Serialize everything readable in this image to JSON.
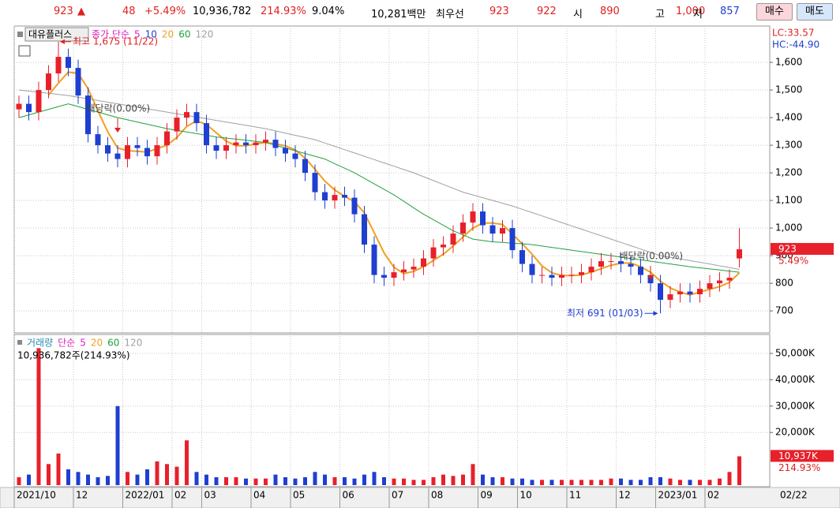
{
  "header": {
    "price": "923",
    "arrow": "▲",
    "change": "48",
    "rate": "+5.49%",
    "volume": "10,936,782",
    "volume_ratio": "214.93%",
    "turnover": "9.04%",
    "amount": "10,281백만",
    "best_label": "최우선",
    "ask": "923",
    "bid": "922",
    "open_label": "시",
    "open": "890",
    "high_label": "고",
    "high": "1,000",
    "low_label": "저",
    "low": "857",
    "buy": "매수",
    "sell": "매도"
  },
  "chart_data": [
    {
      "type": "candlestick",
      "name": "대유플러스",
      "categories": [
        "2021/10",
        null,
        null,
        null,
        null,
        null,
        "12",
        null,
        null,
        null,
        null,
        "2022/01",
        null,
        null,
        null,
        null,
        "02",
        null,
        null,
        "03",
        null,
        null,
        null,
        null,
        "04",
        null,
        null,
        null,
        "05",
        null,
        null,
        null,
        null,
        "06",
        null,
        null,
        null,
        null,
        "07",
        null,
        null,
        null,
        "08",
        null,
        null,
        null,
        null,
        "09",
        null,
        null,
        null,
        "10",
        null,
        null,
        null,
        null,
        "11",
        null,
        null,
        null,
        null,
        "12",
        null,
        null,
        null,
        "2023/01",
        null,
        null,
        null,
        null,
        "02",
        null,
        null,
        null
      ],
      "last_date": "02/22",
      "open": [
        1430,
        1450,
        1420,
        1500,
        1560,
        1620,
        1580,
        1480,
        1340,
        1300,
        1270,
        1250,
        1300,
        1290,
        1260,
        1300,
        1350,
        1400,
        1420,
        1380,
        1300,
        1280,
        1300,
        1310,
        1300,
        1310,
        1320,
        1290,
        1270,
        1250,
        1200,
        1130,
        1100,
        1120,
        1110,
        1050,
        940,
        830,
        820,
        840,
        850,
        860,
        890,
        930,
        940,
        980,
        1020,
        1060,
        1010,
        980,
        1000,
        920,
        870,
        830,
        830,
        820,
        830,
        830,
        840,
        860,
        880,
        880,
        870,
        860,
        830,
        800,
        740,
        760,
        770,
        760,
        780,
        800,
        810,
        890
      ],
      "high": [
        1480,
        1480,
        1530,
        1590,
        1675,
        1650,
        1610,
        1510,
        1370,
        1330,
        1300,
        1330,
        1330,
        1320,
        1330,
        1380,
        1430,
        1450,
        1450,
        1410,
        1330,
        1330,
        1340,
        1340,
        1340,
        1350,
        1350,
        1320,
        1300,
        1280,
        1230,
        1160,
        1150,
        1150,
        1140,
        1080,
        970,
        860,
        870,
        880,
        890,
        920,
        960,
        970,
        1010,
        1050,
        1090,
        1090,
        1040,
        1030,
        1030,
        950,
        900,
        860,
        860,
        860,
        860,
        870,
        890,
        910,
        910,
        910,
        900,
        890,
        860,
        830,
        790,
        800,
        800,
        810,
        830,
        840,
        850,
        1000
      ],
      "low": [
        1400,
        1390,
        1390,
        1470,
        1530,
        1550,
        1450,
        1310,
        1270,
        1240,
        1220,
        1220,
        1260,
        1230,
        1230,
        1270,
        1320,
        1370,
        1350,
        1270,
        1250,
        1250,
        1270,
        1270,
        1270,
        1280,
        1260,
        1240,
        1220,
        1170,
        1100,
        1070,
        1070,
        1080,
        1020,
        910,
        800,
        790,
        790,
        810,
        820,
        830,
        860,
        900,
        910,
        950,
        990,
        980,
        950,
        950,
        890,
        840,
        800,
        800,
        790,
        790,
        800,
        800,
        810,
        830,
        850,
        840,
        830,
        800,
        770,
        691,
        710,
        730,
        730,
        730,
        750,
        770,
        780,
        857
      ],
      "close": [
        1450,
        1420,
        1500,
        1560,
        1620,
        1580,
        1480,
        1340,
        1300,
        1270,
        1250,
        1300,
        1290,
        1260,
        1300,
        1350,
        1400,
        1420,
        1380,
        1300,
        1280,
        1300,
        1310,
        1300,
        1310,
        1320,
        1290,
        1270,
        1250,
        1200,
        1130,
        1100,
        1120,
        1110,
        1050,
        940,
        830,
        820,
        840,
        850,
        860,
        890,
        930,
        940,
        980,
        1020,
        1060,
        1010,
        980,
        1000,
        920,
        870,
        830,
        830,
        820,
        830,
        830,
        840,
        860,
        880,
        880,
        870,
        860,
        830,
        800,
        740,
        760,
        770,
        760,
        780,
        800,
        810,
        820,
        923
      ],
      "up_color": "#e8202a",
      "down_color": "#1f3fd0",
      "ma_label": "종가 단순",
      "ma_series": [
        {
          "name": "5",
          "color": "#e020c0"
        },
        {
          "name": "10",
          "color": "#2040e0"
        },
        {
          "name": "20",
          "color": "#f0a020",
          "values": [
            null,
            null,
            null,
            1482,
            1525,
            1565,
            1560,
            1505,
            1425,
            1348,
            1290,
            1280,
            1278,
            1275,
            1288,
            1300,
            1328,
            1368,
            1388,
            1375,
            1345,
            1315,
            1298,
            1298,
            1305,
            1310,
            1305,
            1298,
            1283,
            1253,
            1213,
            1170,
            1138,
            1115,
            1095,
            1055,
            983,
            910,
            858,
            835,
            843,
            860,
            883,
            905,
            935,
            968,
            1000,
            1018,
            1018,
            1013,
            978,
            943,
            905,
            863,
            838,
            828,
            828,
            830,
            840,
            853,
            865,
            873,
            873,
            860,
            840,
            808,
            783,
            768,
            758,
            768,
            778,
            788,
            803,
            838
          ]
        },
        {
          "name": "60",
          "color": "#20a040",
          "values": [
            1400,
            1410,
            1420,
            1430,
            1440,
            1450,
            1440,
            1430,
            1420,
            1410,
            1400,
            1392,
            1384,
            1376,
            1368,
            1360,
            1354,
            1348,
            1342,
            1336,
            1330,
            1326,
            1322,
            1318,
            1314,
            1310,
            1300,
            1290,
            1280,
            1270,
            1260,
            1250,
            1233,
            1217,
            1200,
            1180,
            1160,
            1140,
            1120,
            1097,
            1073,
            1050,
            1030,
            1010,
            990,
            975,
            960,
            955,
            950,
            948,
            945,
            943,
            940,
            935,
            930,
            925,
            920,
            915,
            910,
            905,
            900,
            895,
            890,
            885,
            880,
            875,
            870,
            865,
            860,
            856,
            852,
            848,
            844,
            840
          ]
        },
        {
          "name": "120",
          "color": "#a0a0a0",
          "values": [
            1500,
            1496,
            1492,
            1488,
            1484,
            1480,
            1474,
            1468,
            1462,
            1456,
            1450,
            1444,
            1438,
            1432,
            1426,
            1420,
            1414,
            1408,
            1402,
            1396,
            1390,
            1384,
            1378,
            1372,
            1366,
            1360,
            1352,
            1344,
            1336,
            1328,
            1320,
            1308,
            1296,
            1284,
            1272,
            1260,
            1248,
            1236,
            1224,
            1212,
            1200,
            1186,
            1172,
            1158,
            1144,
            1130,
            1120,
            1110,
            1100,
            1090,
            1080,
            1068,
            1056,
            1044,
            1032,
            1020,
            1008,
            996,
            984,
            972,
            960,
            948,
            936,
            924,
            912,
            900,
            894,
            888,
            882,
            876,
            870,
            863,
            857,
            850
          ]
        }
      ],
      "ylim": [
        626,
        1726
      ],
      "yticks": [
        700,
        800,
        900,
        {
          "value": 1000,
          "label": "1,000"
        },
        {
          "value": 1100,
          "label": "1,100"
        },
        {
          "value": 1200,
          "label": "1,200"
        },
        {
          "value": 1300,
          "label": "1,300"
        },
        {
          "value": 1400,
          "label": "1,400"
        },
        {
          "value": 1500,
          "label": "1,500"
        },
        {
          "value": 1600,
          "label": "1,600"
        }
      ],
      "grid": true,
      "lc_label": "LC:33.57",
      "hc_label": "HC:-44.90",
      "last_rate_label": "5.49%",
      "annotations": {
        "high": "최고 1,675 (11/22)",
        "low": "최저 691 (01/03)",
        "dividend": [
          "배당락(0.00%)",
          "배당락(0.00%)"
        ]
      }
    },
    {
      "type": "bar",
      "title": "거래량",
      "ma_label": "단순",
      "ma_series": [
        {
          "name": "5",
          "color": "#e020c0"
        },
        {
          "name": "20",
          "color": "#f0a020"
        },
        {
          "name": "60",
          "color": "#20a040"
        },
        {
          "name": "120",
          "color": "#a0a0a0"
        }
      ],
      "summary": "10,936,782주(214.93%)",
      "values": [
        3000,
        4000,
        52000,
        8000,
        12000,
        6000,
        5000,
        4000,
        3000,
        3500,
        30000,
        5000,
        4000,
        6000,
        9000,
        8000,
        7000,
        17000,
        5000,
        4000,
        3000,
        3000,
        3000,
        2500,
        2500,
        2500,
        4000,
        3000,
        2500,
        3000,
        5000,
        4000,
        3000,
        3000,
        2500,
        4000,
        5000,
        3000,
        2500,
        2500,
        2000,
        2000,
        3000,
        4000,
        3500,
        4000,
        8000,
        4000,
        3000,
        3000,
        2500,
        2500,
        2000,
        2000,
        2000,
        2000,
        2000,
        2000,
        2000,
        2000,
        2500,
        2500,
        2000,
        2000,
        3000,
        3000,
        2500,
        2000,
        2000,
        2000,
        2000,
        2500,
        5000,
        10937
      ],
      "last_value_label": "10,937K",
      "last_ratio_label": "214.93%",
      "ylim": [
        0,
        56900
      ],
      "yticks": [
        {
          "value": 20000,
          "label": "20,000K"
        },
        {
          "value": 30000,
          "label": "30,000K"
        },
        {
          "value": 40000,
          "label": "40,000K"
        },
        {
          "value": 50000,
          "label": "50,000K"
        }
      ],
      "grid": true
    }
  ]
}
